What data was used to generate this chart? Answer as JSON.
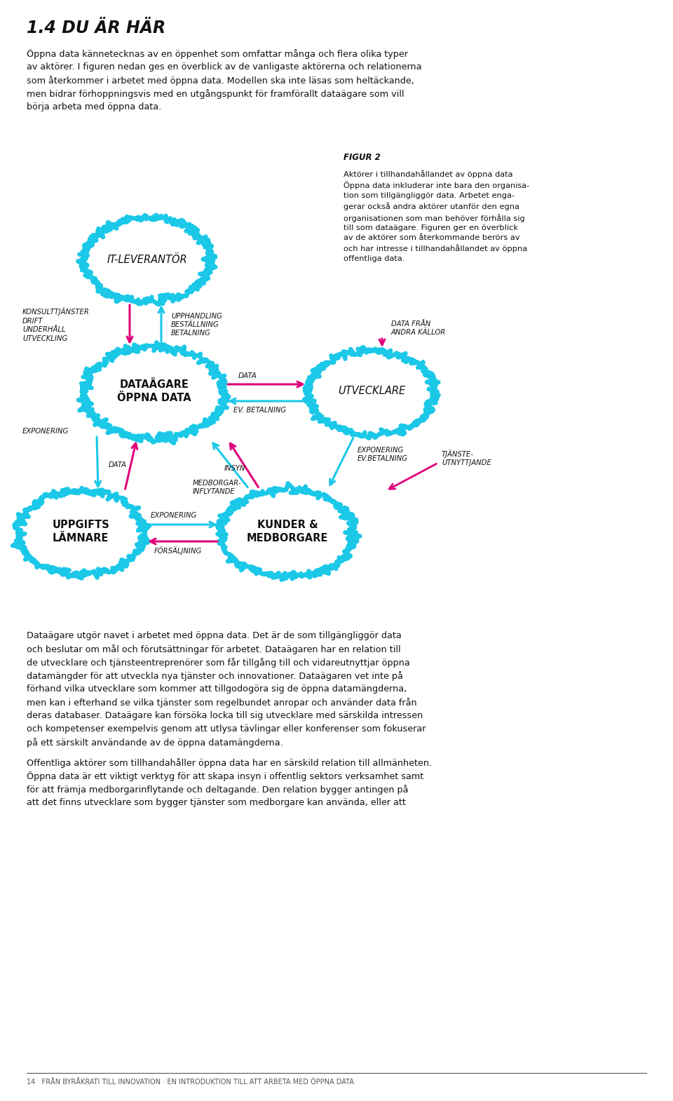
{
  "title": "1.4 DU ÄR HÄR",
  "bg_color": "#ffffff",
  "para1": "Öppna data kännetecknas av en öppenhet som omfattar många och flera olika typer av aktörer. I figuren nedan ges en överblick av de vanligaste aktörerna och relationerna som återkommer i arbetet med öppna data. Modellen ska inte läsas som heltäckande, men bidrar förhoppningsvis med en utgångspunkt för framförallt dataägare som vill börja arbeta med öppna data.",
  "figur_label": "FIGUR 2",
  "figur_caption": "Aktörer i tillhandahållandet av öppna data\nÖppna data inkluderar inte bara den organisa-\ntion som tillgängliggör data. Arbetet enga-\ngerar också andra aktörer utanför den egna\norganisationen som man behöver förhålla sig\ntill som dataägare. Figuren ger en överblick\nav de aktörer som återkommande berörs av\noch har intresse i tillhandahållandet av öppna\noffentliga data.",
  "circle_color": "#1bc8e8",
  "arrow_cyan": "#1bc8e8",
  "arrow_magenta": "#e0007a",
  "para2": "Dataägare utgör navet i arbetet med öppna data. Det är de som tillgängliggör data och beslutar om mål och förutsättningar för arbetet. Dataägaren har en relation till de utvecklare och tjänsteentreprenörer som får tillgång till och vidareutnyttjar öppna datamängder för att utveckla nya tjänster och innovationer. Dataägaren vet inte på förhand vilka utvecklare som kommer att tillgodogöra sig de öppna datamängderna, men kan i efterhand se vilka tjänster som regelbundet anropar och använder data från deras databaser. Dataägare kan försöka locka till sig utvecklare med särskilda intressen och kompetenser exempelvis genom att utlysa tävlingar eller konferenser som fokuserar på ett särskilt användande av de öppna datamängderna.",
  "para3": "Offentliga aktörer som tillhandahåller öppna data har en särskild relation till allmänheten. Öppna data är ett viktigt verktyg för att skapa insyn i offentlig sektors verksamhet samt för att främja medborgarinflytande och deltagande. Den relation bygger antingen på att det finns utvecklare som bygger tjänster som medborgare kan använda, eller att",
  "footer": "14   FRÅN BYRÅKRATI TILL INNOVATION · EN INTRODUKTION TILL ATT ARBETA MED ÖPPNA DATA"
}
